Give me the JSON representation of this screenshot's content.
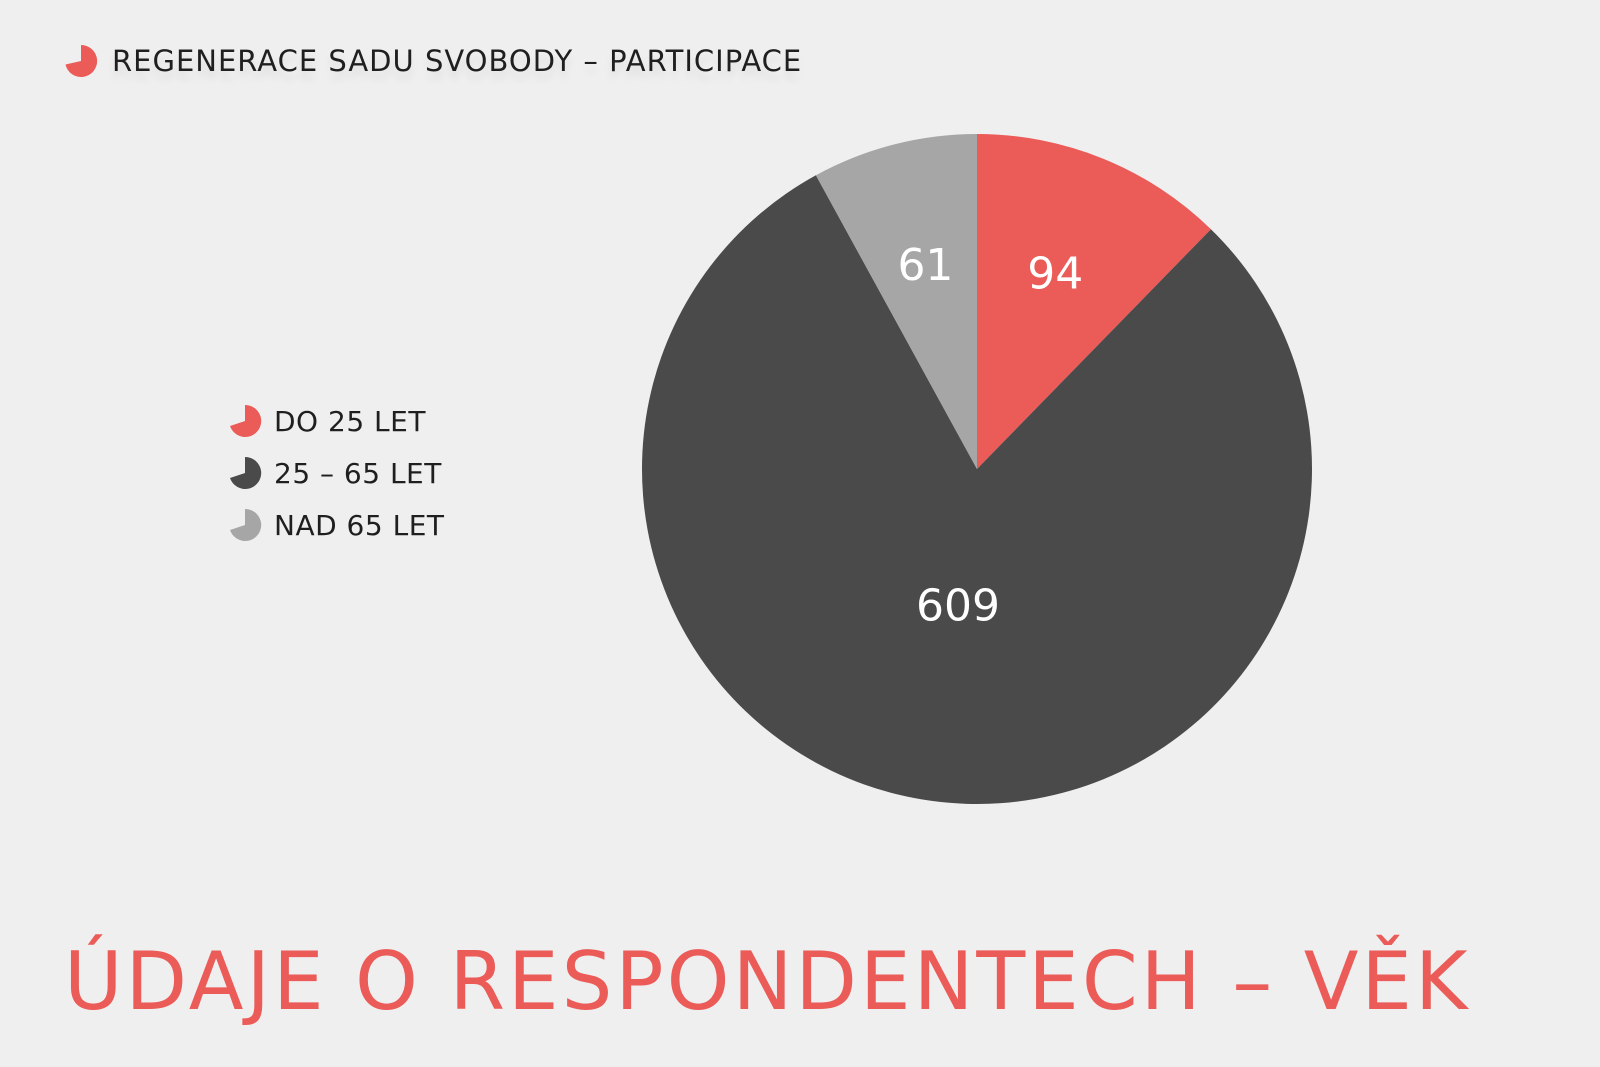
{
  "header": {
    "title": "REGENERACE SADU SVOBODY – PARTICIPACE",
    "icon": "pie-chart-icon"
  },
  "footer": {
    "title": "ÚDAJE O RESPONDENTECH – VĚK"
  },
  "colors": {
    "accent": "#eb5b58",
    "dark": "#4a4a4a",
    "light": "#a6a6a6",
    "background": "#efefef"
  },
  "chart_data": {
    "type": "pie",
    "title": "",
    "categories": [
      "DO 25 LET",
      "25 – 65 LET",
      "NAD 65 LET"
    ],
    "values": [
      94,
      609,
      61
    ],
    "colors": [
      "#eb5b58",
      "#4a4a4a",
      "#a6a6a6"
    ],
    "start_angle_deg": 0,
    "direction": "clockwise",
    "legend_position": "left"
  }
}
